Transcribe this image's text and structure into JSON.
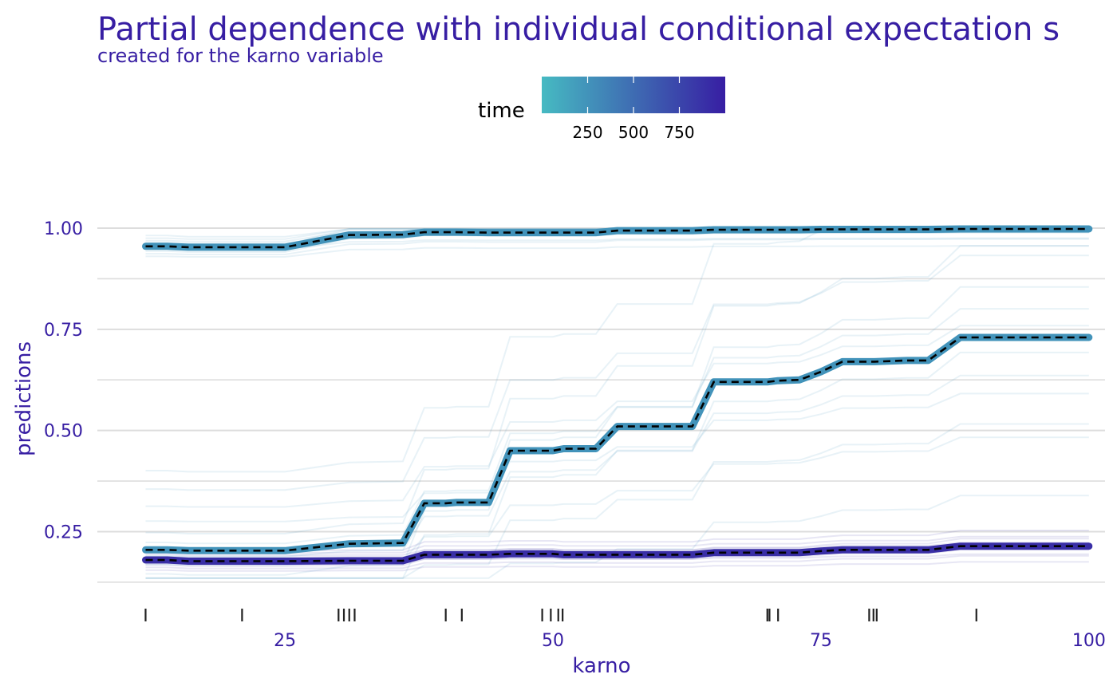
{
  "chart_data": {
    "type": "line",
    "title": "Partial dependence with individual conditional expectation s",
    "subtitle": "created for the karno variable",
    "xlabel": "karno",
    "ylabel": "predictions",
    "xlim": [
      7.5,
      101.5
    ],
    "ylim": [
      0.105,
      1.14
    ],
    "x_ticks": [
      25,
      50,
      75,
      100
    ],
    "x_tick_labels": [
      "25",
      "50",
      "75",
      "100"
    ],
    "y_ticks": [
      0.25,
      0.5,
      0.75,
      1.0
    ],
    "y_tick_labels": [
      "0.25",
      "0.50",
      "0.75",
      "1.00"
    ],
    "grid": true,
    "legend": {
      "title": "time",
      "position": "top",
      "type": "colorbar",
      "ticks": [
        250,
        500,
        750
      ],
      "tick_labels": [
        "250",
        "500",
        "750"
      ],
      "range": [
        0,
        1000
      ],
      "colors": [
        "#46bac2",
        "#371ea3"
      ]
    },
    "colors": {
      "title": "#371ea3",
      "axis_text": "#371ea3",
      "grid": "#dddddd",
      "rug": "#222222",
      "pd_dash": "#000000"
    },
    "rug_x": [
      12,
      21,
      30,
      30.5,
      31,
      31.5,
      40,
      41.5,
      49,
      49.8,
      50.5,
      50.9,
      70,
      70.2,
      71,
      79.5,
      79.9,
      80.2,
      89.5
    ],
    "breakpoints": [
      12,
      14,
      16,
      23,
      25,
      31,
      36,
      38,
      40,
      41,
      44,
      46,
      50,
      51,
      54,
      56,
      59,
      63,
      65,
      67,
      70,
      71,
      73,
      75,
      77,
      80,
      83,
      85,
      88,
      90,
      100
    ],
    "series": [
      {
        "time": 250,
        "values": [
          0.955,
          0.955,
          0.953,
          0.953,
          0.953,
          0.983,
          0.984,
          0.99,
          0.99,
          0.99,
          0.989,
          0.989,
          0.989,
          0.989,
          0.989,
          0.994,
          0.994,
          0.994,
          0.996,
          0.996,
          0.996,
          0.996,
          0.996,
          0.997,
          0.997,
          0.997,
          0.997,
          0.997,
          0.998,
          0.998,
          0.998
        ]
      },
      {
        "time": 250,
        "values": [
          0.205,
          0.205,
          0.203,
          0.203,
          0.203,
          0.22,
          0.222,
          0.32,
          0.32,
          0.322,
          0.322,
          0.45,
          0.45,
          0.455,
          0.455,
          0.51,
          0.51,
          0.51,
          0.62,
          0.62,
          0.62,
          0.623,
          0.625,
          0.645,
          0.67,
          0.67,
          0.673,
          0.673,
          0.73,
          0.73,
          0.73
        ]
      },
      {
        "time": 900,
        "values": [
          0.18,
          0.18,
          0.177,
          0.177,
          0.177,
          0.178,
          0.178,
          0.193,
          0.193,
          0.193,
          0.193,
          0.195,
          0.195,
          0.193,
          0.193,
          0.193,
          0.193,
          0.193,
          0.198,
          0.198,
          0.198,
          0.198,
          0.198,
          0.202,
          0.205,
          0.205,
          0.205,
          0.205,
          0.214,
          0.214,
          0.214
        ]
      }
    ]
  }
}
